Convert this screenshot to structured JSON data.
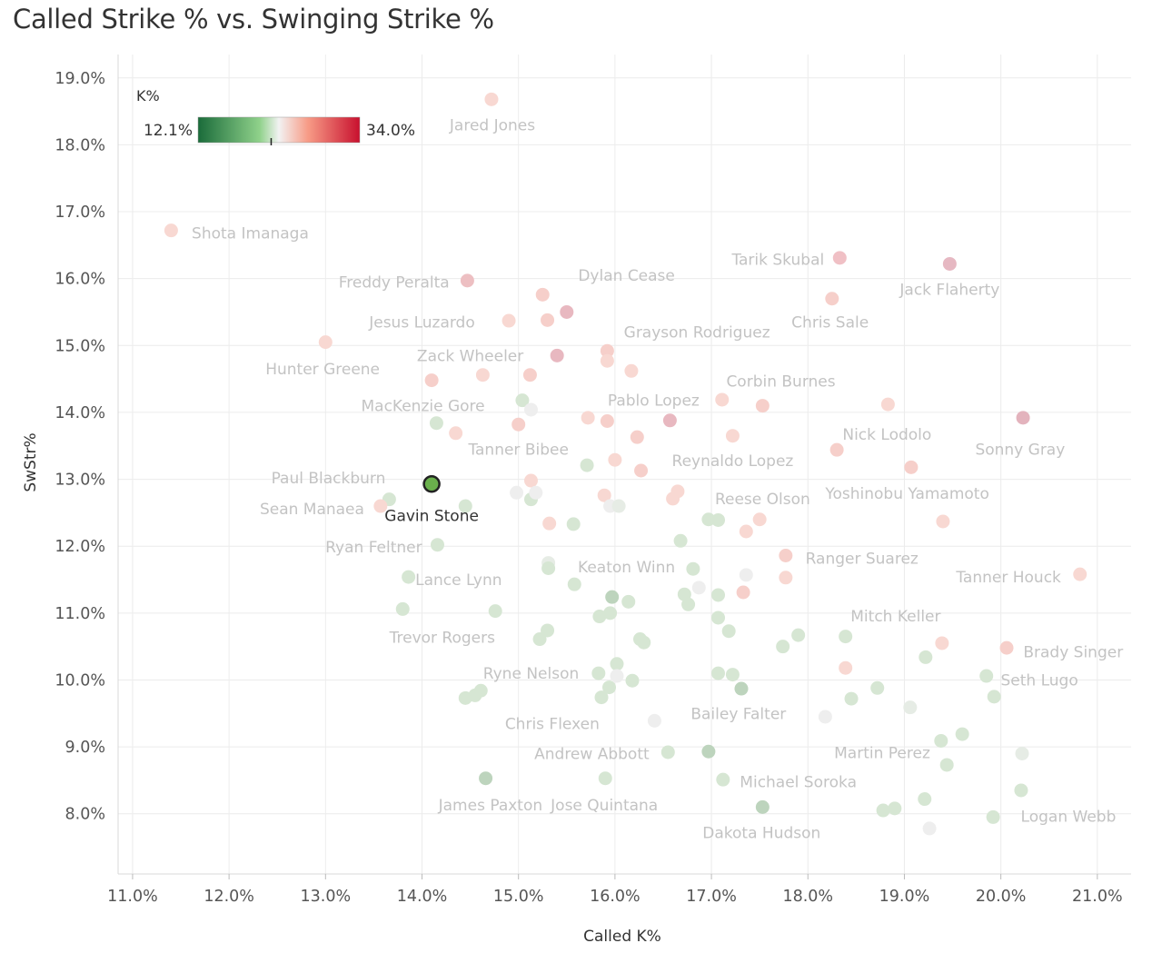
{
  "chart_data": {
    "type": "scatter",
    "title": "Called Strike % vs. Swinging Strike %",
    "xlabel": "Called K%",
    "ylabel": "SwStr%",
    "xlim": [
      10.85,
      21.35
    ],
    "ylim": [
      7.1,
      19.35
    ],
    "xticks": [
      11,
      12,
      13,
      14,
      15,
      16,
      17,
      18,
      19,
      20,
      21
    ],
    "yticks": [
      8,
      9,
      10,
      11,
      12,
      13,
      14,
      15,
      16,
      17,
      18,
      19
    ],
    "tick_format": "{v}.0%",
    "grid": true,
    "legend": {
      "title": "K%",
      "min_label": "12.1%",
      "max_label": "34.0%",
      "min": 12.1,
      "max": 34.0,
      "marker": 22.0,
      "placement": "top-left",
      "colors": [
        "#1a6b3a",
        "#8fd18a",
        "#f2f2f2",
        "#f79b86",
        "#c8102e"
      ]
    },
    "highlight": {
      "name": "Gavin Stone",
      "x": 14.1,
      "y": 12.93,
      "color": "#6ab04c"
    },
    "points": [
      {
        "x": 11.4,
        "y": 16.72,
        "c": "#f8d8d2"
      },
      {
        "x": 14.72,
        "y": 18.68,
        "c": "#f8d8d2"
      },
      {
        "x": 14.47,
        "y": 15.97,
        "c": "#edbfc2"
      },
      {
        "x": 13.0,
        "y": 15.05,
        "c": "#f8d8d2"
      },
      {
        "x": 14.1,
        "y": 14.48,
        "c": "#f6cfca"
      },
      {
        "x": 14.35,
        "y": 13.69,
        "c": "#f8d8d2"
      },
      {
        "x": 14.63,
        "y": 14.56,
        "c": "#f8d8d2"
      },
      {
        "x": 14.9,
        "y": 15.37,
        "c": "#f8d8d2"
      },
      {
        "x": 15.25,
        "y": 15.76,
        "c": "#f6cfca"
      },
      {
        "x": 15.3,
        "y": 15.38,
        "c": "#f6cfca"
      },
      {
        "x": 15.5,
        "y": 15.5,
        "c": "#e8b8c0"
      },
      {
        "x": 15.4,
        "y": 14.85,
        "c": "#e8b8c0"
      },
      {
        "x": 15.12,
        "y": 14.56,
        "c": "#f6cfca"
      },
      {
        "x": 15.04,
        "y": 14.18,
        "c": "#d6e6d3"
      },
      {
        "x": 15.13,
        "y": 14.04,
        "c": "#eeeeee"
      },
      {
        "x": 14.15,
        "y": 13.84,
        "c": "#d6e6d3"
      },
      {
        "x": 15.0,
        "y": 13.82,
        "c": "#f6cfca"
      },
      {
        "x": 15.72,
        "y": 13.92,
        "c": "#f8d8d2"
      },
      {
        "x": 15.92,
        "y": 14.92,
        "c": "#f6cfca"
      },
      {
        "x": 15.92,
        "y": 14.77,
        "c": "#f8d8d2"
      },
      {
        "x": 16.17,
        "y": 14.62,
        "c": "#f8d8d2"
      },
      {
        "x": 15.92,
        "y": 13.87,
        "c": "#f6cfca"
      },
      {
        "x": 16.23,
        "y": 13.63,
        "c": "#f6cfca"
      },
      {
        "x": 16.57,
        "y": 13.88,
        "c": "#e8b8c0"
      },
      {
        "x": 17.11,
        "y": 14.19,
        "c": "#f8d8d2"
      },
      {
        "x": 17.53,
        "y": 14.1,
        "c": "#f6cfca"
      },
      {
        "x": 17.22,
        "y": 13.65,
        "c": "#f8d8d2"
      },
      {
        "x": 18.33,
        "y": 16.31,
        "c": "#f0c0c5"
      },
      {
        "x": 19.47,
        "y": 16.22,
        "c": "#e6b8c2"
      },
      {
        "x": 18.25,
        "y": 15.7,
        "c": "#f6cfca"
      },
      {
        "x": 18.83,
        "y": 14.12,
        "c": "#f8d8d2"
      },
      {
        "x": 20.23,
        "y": 13.92,
        "c": "#e3b3bd"
      },
      {
        "x": 18.3,
        "y": 13.44,
        "c": "#f6cfca"
      },
      {
        "x": 19.07,
        "y": 13.18,
        "c": "#f6cfca"
      },
      {
        "x": 19.4,
        "y": 12.37,
        "c": "#f8d8d2"
      },
      {
        "x": 20.82,
        "y": 11.58,
        "c": "#f8d8d2"
      },
      {
        "x": 15.71,
        "y": 13.21,
        "c": "#d6e6d3"
      },
      {
        "x": 16.0,
        "y": 13.29,
        "c": "#f8d8d2"
      },
      {
        "x": 16.27,
        "y": 13.13,
        "c": "#f6cfca"
      },
      {
        "x": 15.13,
        "y": 12.98,
        "c": "#f8d8d2"
      },
      {
        "x": 14.98,
        "y": 12.8,
        "c": "#eeeeee"
      },
      {
        "x": 15.13,
        "y": 12.7,
        "c": "#d6e6d3"
      },
      {
        "x": 15.18,
        "y": 12.8,
        "c": "#eeeeee"
      },
      {
        "x": 15.89,
        "y": 12.76,
        "c": "#f8d8d2"
      },
      {
        "x": 15.95,
        "y": 12.6,
        "c": "#eeeeee"
      },
      {
        "x": 16.04,
        "y": 12.6,
        "c": "#e6ece5"
      },
      {
        "x": 16.65,
        "y": 12.82,
        "c": "#f8d8d2"
      },
      {
        "x": 16.6,
        "y": 12.71,
        "c": "#f8d8d2"
      },
      {
        "x": 13.66,
        "y": 12.7,
        "c": "#d6e6d3"
      },
      {
        "x": 13.57,
        "y": 12.6,
        "c": "#f8d8d2"
      },
      {
        "x": 14.45,
        "y": 12.6,
        "c": "#d6e6d3"
      },
      {
        "x": 15.32,
        "y": 12.34,
        "c": "#f8d8d2"
      },
      {
        "x": 15.57,
        "y": 12.33,
        "c": "#d6e6d3"
      },
      {
        "x": 16.97,
        "y": 12.4,
        "c": "#d6e6d3"
      },
      {
        "x": 17.07,
        "y": 12.39,
        "c": "#d6e6d3"
      },
      {
        "x": 17.5,
        "y": 12.4,
        "c": "#f8d8d2"
      },
      {
        "x": 17.36,
        "y": 12.22,
        "c": "#f8d8d2"
      },
      {
        "x": 16.68,
        "y": 12.08,
        "c": "#d6e6d3"
      },
      {
        "x": 14.16,
        "y": 12.02,
        "c": "#d6e6d3"
      },
      {
        "x": 17.77,
        "y": 11.86,
        "c": "#f6cfca"
      },
      {
        "x": 17.77,
        "y": 11.53,
        "c": "#f8d8d2"
      },
      {
        "x": 15.31,
        "y": 11.75,
        "c": "#e6ece5"
      },
      {
        "x": 15.31,
        "y": 11.67,
        "c": "#d6e6d3"
      },
      {
        "x": 13.86,
        "y": 11.54,
        "c": "#d6e6d3"
      },
      {
        "x": 15.58,
        "y": 11.43,
        "c": "#d6e6d3"
      },
      {
        "x": 16.81,
        "y": 11.66,
        "c": "#d6e6d3"
      },
      {
        "x": 17.36,
        "y": 11.57,
        "c": "#eeeeee"
      },
      {
        "x": 16.87,
        "y": 11.38,
        "c": "#eeeeee"
      },
      {
        "x": 16.72,
        "y": 11.28,
        "c": "#d6e6d3"
      },
      {
        "x": 16.76,
        "y": 11.13,
        "c": "#d6e6d3"
      },
      {
        "x": 17.07,
        "y": 11.27,
        "c": "#d6e6d3"
      },
      {
        "x": 17.33,
        "y": 11.31,
        "c": "#f6cfca"
      },
      {
        "x": 15.97,
        "y": 11.24,
        "c": "#bdd4bd"
      },
      {
        "x": 16.14,
        "y": 11.17,
        "c": "#d6e6d3"
      },
      {
        "x": 13.8,
        "y": 11.06,
        "c": "#d6e6d3"
      },
      {
        "x": 14.76,
        "y": 11.03,
        "c": "#d6e6d3"
      },
      {
        "x": 15.84,
        "y": 10.95,
        "c": "#d6e6d3"
      },
      {
        "x": 15.95,
        "y": 11.0,
        "c": "#d6e6d3"
      },
      {
        "x": 17.07,
        "y": 10.93,
        "c": "#d6e6d3"
      },
      {
        "x": 17.18,
        "y": 10.73,
        "c": "#d6e6d3"
      },
      {
        "x": 15.3,
        "y": 10.74,
        "c": "#d6e6d3"
      },
      {
        "x": 15.22,
        "y": 10.61,
        "c": "#d6e6d3"
      },
      {
        "x": 16.26,
        "y": 10.61,
        "c": "#d6e6d3"
      },
      {
        "x": 16.3,
        "y": 10.56,
        "c": "#d6e6d3"
      },
      {
        "x": 17.9,
        "y": 10.67,
        "c": "#d6e6d3"
      },
      {
        "x": 17.74,
        "y": 10.5,
        "c": "#d6e6d3"
      },
      {
        "x": 18.39,
        "y": 10.65,
        "c": "#d6e6d3"
      },
      {
        "x": 19.39,
        "y": 10.55,
        "c": "#f8d8d2"
      },
      {
        "x": 19.22,
        "y": 10.34,
        "c": "#d6e6d3"
      },
      {
        "x": 20.06,
        "y": 10.48,
        "c": "#f6cfca"
      },
      {
        "x": 18.39,
        "y": 10.18,
        "c": "#f8d8d2"
      },
      {
        "x": 16.02,
        "y": 10.24,
        "c": "#d6e6d3"
      },
      {
        "x": 15.83,
        "y": 10.1,
        "c": "#d6e6d3"
      },
      {
        "x": 16.02,
        "y": 10.06,
        "c": "#eeeeee"
      },
      {
        "x": 16.18,
        "y": 9.99,
        "c": "#d6e6d3"
      },
      {
        "x": 15.94,
        "y": 9.89,
        "c": "#d6e6d3"
      },
      {
        "x": 15.86,
        "y": 9.74,
        "c": "#d6e6d3"
      },
      {
        "x": 14.61,
        "y": 9.84,
        "c": "#d6e6d3"
      },
      {
        "x": 14.55,
        "y": 9.77,
        "c": "#d6e6d3"
      },
      {
        "x": 14.45,
        "y": 9.73,
        "c": "#d6e6d3"
      },
      {
        "x": 17.07,
        "y": 10.1,
        "c": "#d6e6d3"
      },
      {
        "x": 17.22,
        "y": 10.08,
        "c": "#d6e6d3"
      },
      {
        "x": 17.31,
        "y": 9.87,
        "c": "#bdd4bd"
      },
      {
        "x": 18.72,
        "y": 9.88,
        "c": "#d6e6d3"
      },
      {
        "x": 18.45,
        "y": 9.72,
        "c": "#d6e6d3"
      },
      {
        "x": 19.85,
        "y": 10.06,
        "c": "#d6e6d3"
      },
      {
        "x": 19.93,
        "y": 9.75,
        "c": "#d6e6d3"
      },
      {
        "x": 19.06,
        "y": 9.59,
        "c": "#e6ece5"
      },
      {
        "x": 18.18,
        "y": 9.45,
        "c": "#eeeeee"
      },
      {
        "x": 16.41,
        "y": 9.39,
        "c": "#eeeeee"
      },
      {
        "x": 16.55,
        "y": 8.92,
        "c": "#d6e6d3"
      },
      {
        "x": 16.97,
        "y": 8.93,
        "c": "#bdd4bd"
      },
      {
        "x": 19.38,
        "y": 9.09,
        "c": "#d6e6d3"
      },
      {
        "x": 19.6,
        "y": 9.19,
        "c": "#d6e6d3"
      },
      {
        "x": 19.44,
        "y": 8.73,
        "c": "#d6e6d3"
      },
      {
        "x": 20.22,
        "y": 8.9,
        "c": "#e6ece5"
      },
      {
        "x": 14.66,
        "y": 8.53,
        "c": "#bdd4bd"
      },
      {
        "x": 15.9,
        "y": 8.53,
        "c": "#d6e6d3"
      },
      {
        "x": 17.12,
        "y": 8.51,
        "c": "#d6e6d3"
      },
      {
        "x": 17.53,
        "y": 8.1,
        "c": "#bdd4bd"
      },
      {
        "x": 18.78,
        "y": 8.05,
        "c": "#d6e6d3"
      },
      {
        "x": 18.9,
        "y": 8.08,
        "c": "#d6e6d3"
      },
      {
        "x": 19.21,
        "y": 8.22,
        "c": "#d6e6d3"
      },
      {
        "x": 20.21,
        "y": 8.35,
        "c": "#d6e6d3"
      },
      {
        "x": 19.92,
        "y": 7.95,
        "c": "#d6e6d3"
      },
      {
        "x": 19.26,
        "y": 7.78,
        "c": "#eeeeee"
      }
    ],
    "labels": [
      {
        "text": "Jared Jones",
        "x": 14.73,
        "y": 18.3
      },
      {
        "text": "Shota Imanaga",
        "x": 12.22,
        "y": 16.68
      },
      {
        "text": "Tarik Skubal",
        "x": 17.69,
        "y": 16.29
      },
      {
        "text": "Jack Flaherty",
        "x": 19.47,
        "y": 15.84
      },
      {
        "text": "Freddy Peralta",
        "x": 13.71,
        "y": 15.95
      },
      {
        "text": "Dylan Cease",
        "x": 16.12,
        "y": 16.05
      },
      {
        "text": "Chris Sale",
        "x": 18.23,
        "y": 15.35
      },
      {
        "text": "Jesus Luzardo",
        "x": 14.0,
        "y": 15.35
      },
      {
        "text": "Grayson Rodriguez",
        "x": 16.85,
        "y": 15.2
      },
      {
        "text": "Zack Wheeler",
        "x": 14.5,
        "y": 14.85
      },
      {
        "text": "Hunter Greene",
        "x": 12.97,
        "y": 14.65
      },
      {
        "text": "Corbin Burnes",
        "x": 17.72,
        "y": 14.47
      },
      {
        "text": "Pablo Lopez",
        "x": 16.4,
        "y": 14.18
      },
      {
        "text": "MacKenzie Gore",
        "x": 14.01,
        "y": 14.1
      },
      {
        "text": "Nick Lodolo",
        "x": 18.82,
        "y": 13.67
      },
      {
        "text": "Sonny Gray",
        "x": 20.2,
        "y": 13.45
      },
      {
        "text": "Tanner Bibee",
        "x": 15.0,
        "y": 13.45
      },
      {
        "text": "Reynaldo Lopez",
        "x": 17.22,
        "y": 13.28
      },
      {
        "text": "Paul Blackburn",
        "x": 13.03,
        "y": 13.02
      },
      {
        "text": "Yoshinobu Yamamoto",
        "x": 19.03,
        "y": 12.79
      },
      {
        "text": "Reese Olson",
        "x": 17.53,
        "y": 12.71
      },
      {
        "text": "Sean Manaea",
        "x": 12.86,
        "y": 12.56
      },
      {
        "text": "Ryan Feltner",
        "x": 13.5,
        "y": 11.99
      },
      {
        "text": "Ranger Suarez",
        "x": 18.56,
        "y": 11.82
      },
      {
        "text": "Keaton Winn",
        "x": 16.12,
        "y": 11.69
      },
      {
        "text": "Lance Lynn",
        "x": 14.38,
        "y": 11.5
      },
      {
        "text": "Tanner Houck",
        "x": 20.08,
        "y": 11.54
      },
      {
        "text": "Mitch Keller",
        "x": 18.91,
        "y": 10.96
      },
      {
        "text": "Trevor Rogers",
        "x": 14.21,
        "y": 10.64
      },
      {
        "text": "Brady Singer",
        "x": 20.75,
        "y": 10.42
      },
      {
        "text": "Ryne Nelson",
        "x": 15.13,
        "y": 10.1
      },
      {
        "text": "Seth Lugo",
        "x": 20.4,
        "y": 10.0
      },
      {
        "text": "Bailey Falter",
        "x": 17.28,
        "y": 9.5
      },
      {
        "text": "Chris Flexen",
        "x": 15.35,
        "y": 9.35
      },
      {
        "text": "Martin Perez",
        "x": 18.77,
        "y": 8.91
      },
      {
        "text": "Andrew Abbott",
        "x": 15.76,
        "y": 8.9
      },
      {
        "text": "Michael Soroka",
        "x": 17.9,
        "y": 8.48
      },
      {
        "text": "James Paxton",
        "x": 14.71,
        "y": 8.13
      },
      {
        "text": "Jose Quintana",
        "x": 15.89,
        "y": 8.13
      },
      {
        "text": "Logan Webb",
        "x": 20.7,
        "y": 7.96
      },
      {
        "text": "Dakota Hudson",
        "x": 17.52,
        "y": 7.72
      },
      {
        "text": "Gavin Stone",
        "x": 14.1,
        "y": 12.46,
        "highlight": true
      }
    ]
  }
}
